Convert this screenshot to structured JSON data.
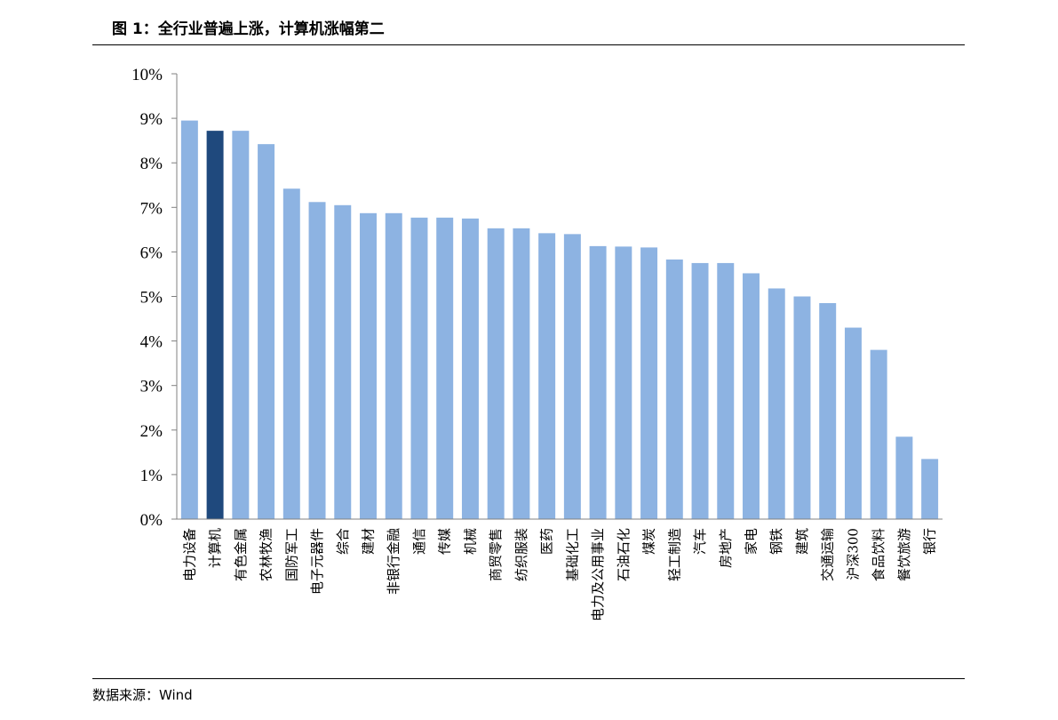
{
  "header": {
    "title": "图 1：全行业普遍上涨，计算机涨幅第二"
  },
  "footer": {
    "source": "数据来源：Wind"
  },
  "colors": {
    "bar": "#8DB3E2",
    "highlight": "#1F497D",
    "axis": "#808080"
  },
  "chart_data": {
    "type": "bar",
    "title": "",
    "xlabel": "",
    "ylabel": "",
    "ylim": [
      0,
      10
    ],
    "yticks": [
      "0%",
      "1%",
      "2%",
      "3%",
      "4%",
      "5%",
      "6%",
      "7%",
      "8%",
      "9%",
      "10%"
    ],
    "grid": false,
    "legend": "none",
    "highlight_category": "计算机",
    "categories": [
      "电力设备",
      "计算机",
      "有色金属",
      "农林牧渔",
      "国防军工",
      "电子元器件",
      "综合",
      "建材",
      "非银行金融",
      "通信",
      "传媒",
      "机械",
      "商贸零售",
      "纺织服装",
      "医药",
      "基础化工",
      "电力及公用事业",
      "石油石化",
      "煤炭",
      "轻工制造",
      "汽车",
      "房地产",
      "家电",
      "钢铁",
      "建筑",
      "交通运输",
      "沪深300",
      "食品饮料",
      "餐饮旅游",
      "银行"
    ],
    "values": [
      8.95,
      8.72,
      8.72,
      8.42,
      7.42,
      7.12,
      7.05,
      6.87,
      6.87,
      6.77,
      6.77,
      6.75,
      6.53,
      6.53,
      6.42,
      6.4,
      6.13,
      6.12,
      6.1,
      5.83,
      5.75,
      5.75,
      5.52,
      5.18,
      5.0,
      4.85,
      4.3,
      3.8,
      1.85,
      1.35
    ]
  }
}
